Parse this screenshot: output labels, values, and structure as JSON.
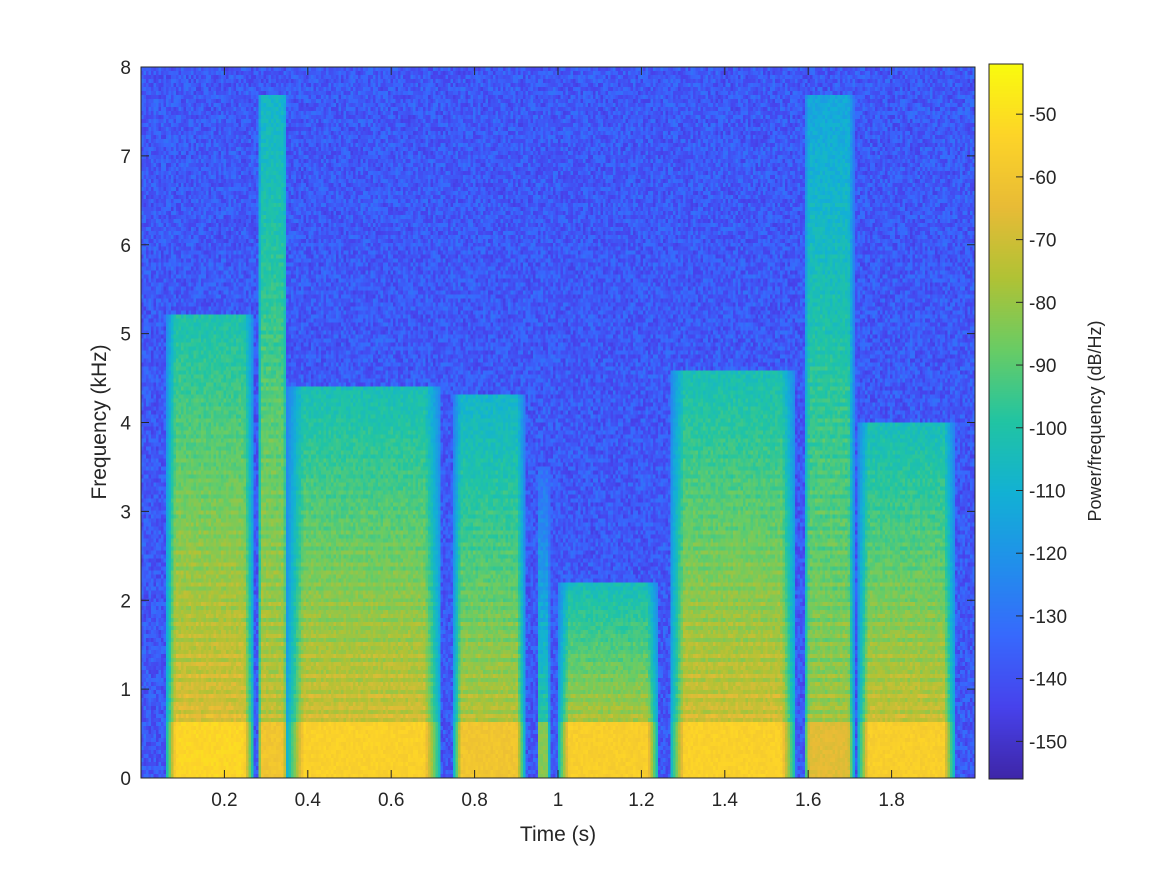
{
  "chart_data": {
    "type": "heatmap",
    "title": "",
    "xlabel": "Time (s)",
    "ylabel": "Frequency (kHz)",
    "xlim": [
      0.0,
      2.0
    ],
    "ylim": [
      0,
      8
    ],
    "x_ticks": [
      0.2,
      0.4,
      0.6,
      0.8,
      1.0,
      1.2,
      1.4,
      1.6,
      1.8
    ],
    "x_tick_labels": [
      "0.2",
      "0.4",
      "0.6",
      "0.8",
      "1",
      "1.2",
      "1.4",
      "1.6",
      "1.8"
    ],
    "y_ticks": [
      0,
      1,
      2,
      3,
      4,
      5,
      6,
      7,
      8
    ],
    "y_tick_labels": [
      "0",
      "1",
      "2",
      "3",
      "4",
      "5",
      "6",
      "7",
      "8"
    ],
    "colorbar": {
      "label": "Power/frequency (dB/Hz)",
      "range": [
        -156,
        -42
      ],
      "ticks": [
        -50,
        -60,
        -70,
        -80,
        -90,
        -100,
        -110,
        -120,
        -130,
        -140,
        -150
      ],
      "tick_labels": [
        "-50",
        "-60",
        "-70",
        "-80",
        "-90",
        "-100",
        "-110",
        "-120",
        "-130",
        "-140",
        "-150"
      ],
      "colormap": "parula"
    },
    "background_level_db": -138,
    "segments": [
      {
        "t_start": 0.06,
        "t_end": 0.27,
        "max_freq_khz": 5.2,
        "peak_db": -55
      },
      {
        "t_start": 0.28,
        "t_end": 0.35,
        "max_freq_khz": 7.7,
        "peak_db": -62
      },
      {
        "t_start": 0.35,
        "t_end": 0.72,
        "max_freq_khz": 4.4,
        "peak_db": -57
      },
      {
        "t_start": 0.75,
        "t_end": 0.92,
        "max_freq_khz": 4.3,
        "peak_db": -62
      },
      {
        "t_start": 0.95,
        "t_end": 0.98,
        "max_freq_khz": 3.5,
        "peak_db": -85
      },
      {
        "t_start": 1.0,
        "t_end": 1.24,
        "max_freq_khz": 2.2,
        "peak_db": -58
      },
      {
        "t_start": 1.27,
        "t_end": 1.57,
        "max_freq_khz": 4.6,
        "peak_db": -57
      },
      {
        "t_start": 1.59,
        "t_end": 1.71,
        "max_freq_khz": 7.7,
        "peak_db": -68
      },
      {
        "t_start": 1.72,
        "t_end": 1.95,
        "max_freq_khz": 4.0,
        "peak_db": -58
      }
    ]
  }
}
